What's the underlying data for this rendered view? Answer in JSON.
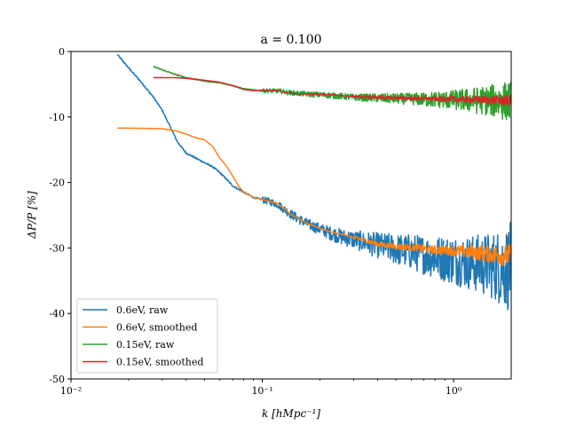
{
  "chart_data": {
    "type": "line",
    "title": "a = 0.100",
    "xlabel": "k [hMpc⁻¹]",
    "ylabel": "ΔP/P [%]",
    "xscale": "log",
    "xlim": [
      0.01,
      2.0
    ],
    "ylim": [
      -50,
      0
    ],
    "xticks": [
      {
        "value": 0.01,
        "label": "10⁻²"
      },
      {
        "value": 0.1,
        "label": "10⁻¹"
      },
      {
        "value": 1.0,
        "label": "10⁰"
      }
    ],
    "yticks": [
      0,
      -10,
      -20,
      -30,
      -40,
      -50
    ],
    "ytick_labels": [
      "0",
      "-10",
      "-20",
      "-30",
      "-40",
      "-50"
    ],
    "grid": false,
    "legend_position": "lower-left",
    "series": [
      {
        "name": "0.6eV, raw",
        "color": "#1f77b4",
        "noisy": true,
        "points": [
          [
            0.0175,
            -0.5
          ],
          [
            0.02,
            -2.5
          ],
          [
            0.023,
            -4.5
          ],
          [
            0.027,
            -7.0
          ],
          [
            0.03,
            -9.0
          ],
          [
            0.033,
            -11.5
          ],
          [
            0.036,
            -13.8
          ],
          [
            0.04,
            -15.5
          ],
          [
            0.045,
            -16.3
          ],
          [
            0.05,
            -17.0
          ],
          [
            0.055,
            -17.6
          ],
          [
            0.06,
            -18.5
          ],
          [
            0.065,
            -19.5
          ],
          [
            0.07,
            -20.5
          ],
          [
            0.08,
            -21.5
          ],
          [
            0.09,
            -22.3
          ],
          [
            0.1,
            -22.6
          ],
          [
            0.12,
            -23.3
          ],
          [
            0.14,
            -24.8
          ],
          [
            0.16,
            -25.8
          ],
          [
            0.18,
            -26.6
          ],
          [
            0.2,
            -27.1
          ],
          [
            0.23,
            -27.8
          ],
          [
            0.26,
            -28.3
          ],
          [
            0.3,
            -28.7
          ],
          [
            0.35,
            -29.2
          ],
          [
            0.4,
            -29.6
          ],
          [
            0.5,
            -30.2
          ],
          [
            0.6,
            -30.6
          ],
          [
            0.7,
            -31.0
          ],
          [
            0.8,
            -31.4
          ],
          [
            1.0,
            -31.8
          ],
          [
            1.2,
            -32.2
          ],
          [
            1.5,
            -32.6
          ],
          [
            2.0,
            -33.0
          ]
        ],
        "noise_envelope": [
          [
            0.1,
            0.5
          ],
          [
            0.2,
            0.9
          ],
          [
            0.3,
            1.4
          ],
          [
            0.5,
            2.4
          ],
          [
            0.8,
            3.3
          ],
          [
            1.2,
            4.2
          ],
          [
            1.6,
            5.2
          ],
          [
            2.0,
            7.0
          ]
        ]
      },
      {
        "name": "0.6eV, smoothed",
        "color": "#ff7f0e",
        "noisy": false,
        "points": [
          [
            0.0175,
            -11.7
          ],
          [
            0.02,
            -11.7
          ],
          [
            0.025,
            -11.75
          ],
          [
            0.03,
            -11.8
          ],
          [
            0.035,
            -12.1
          ],
          [
            0.04,
            -12.6
          ],
          [
            0.045,
            -13.2
          ],
          [
            0.05,
            -13.5
          ],
          [
            0.055,
            -14.5
          ],
          [
            0.06,
            -16.3
          ],
          [
            0.065,
            -17.5
          ],
          [
            0.07,
            -19.0
          ],
          [
            0.075,
            -20.5
          ],
          [
            0.08,
            -21.5
          ],
          [
            0.09,
            -22.3
          ],
          [
            0.1,
            -22.6
          ],
          [
            0.12,
            -23.2
          ],
          [
            0.14,
            -24.8
          ],
          [
            0.16,
            -25.8
          ],
          [
            0.18,
            -26.5
          ],
          [
            0.2,
            -27.0
          ],
          [
            0.23,
            -27.6
          ],
          [
            0.26,
            -27.9
          ],
          [
            0.3,
            -28.4
          ],
          [
            0.35,
            -28.9
          ],
          [
            0.4,
            -29.4
          ],
          [
            0.5,
            -29.8
          ],
          [
            0.6,
            -29.9
          ],
          [
            0.7,
            -30.1
          ],
          [
            0.8,
            -30.3
          ],
          [
            1.0,
            -30.4
          ],
          [
            1.2,
            -30.6
          ],
          [
            1.5,
            -30.9
          ],
          [
            2.0,
            -31.2
          ]
        ],
        "noise_envelope": [
          [
            0.3,
            0.3
          ],
          [
            0.6,
            0.5
          ],
          [
            1.0,
            0.8
          ],
          [
            1.5,
            1.3
          ],
          [
            2.0,
            1.8
          ]
        ]
      },
      {
        "name": "0.15eV, raw",
        "color": "#2ca02c",
        "noisy": true,
        "points": [
          [
            0.027,
            -2.3
          ],
          [
            0.03,
            -2.8
          ],
          [
            0.035,
            -3.5
          ],
          [
            0.04,
            -4.0
          ],
          [
            0.05,
            -4.5
          ],
          [
            0.06,
            -4.8
          ],
          [
            0.07,
            -5.2
          ],
          [
            0.08,
            -5.7
          ],
          [
            0.09,
            -5.9
          ],
          [
            0.1,
            -6.0
          ],
          [
            0.12,
            -6.0
          ],
          [
            0.14,
            -6.3
          ],
          [
            0.17,
            -6.5
          ],
          [
            0.2,
            -6.6
          ],
          [
            0.25,
            -6.8
          ],
          [
            0.3,
            -7.0
          ],
          [
            0.4,
            -7.1
          ],
          [
            0.5,
            -7.2
          ],
          [
            0.7,
            -7.3
          ],
          [
            1.0,
            -7.4
          ],
          [
            1.5,
            -7.5
          ],
          [
            2.0,
            -7.6
          ]
        ],
        "noise_envelope": [
          [
            0.1,
            0.3
          ],
          [
            0.3,
            0.5
          ],
          [
            0.6,
            0.9
          ],
          [
            1.0,
            1.5
          ],
          [
            1.5,
            2.3
          ],
          [
            2.0,
            3.2
          ]
        ]
      },
      {
        "name": "0.15eV, smoothed",
        "color": "#d62728",
        "noisy": false,
        "points": [
          [
            0.027,
            -4.0
          ],
          [
            0.035,
            -4.0
          ],
          [
            0.04,
            -4.1
          ],
          [
            0.05,
            -4.4
          ],
          [
            0.06,
            -4.7
          ],
          [
            0.07,
            -5.2
          ],
          [
            0.08,
            -5.8
          ],
          [
            0.09,
            -6.0
          ],
          [
            0.1,
            -5.9
          ],
          [
            0.12,
            -6.0
          ],
          [
            0.14,
            -6.4
          ],
          [
            0.17,
            -6.5
          ],
          [
            0.2,
            -6.5
          ],
          [
            0.25,
            -6.7
          ],
          [
            0.3,
            -6.9
          ],
          [
            0.4,
            -7.0
          ],
          [
            0.5,
            -7.1
          ],
          [
            0.7,
            -7.2
          ],
          [
            1.0,
            -7.3
          ],
          [
            1.5,
            -7.4
          ],
          [
            2.0,
            -7.5
          ]
        ],
        "noise_envelope": [
          [
            0.3,
            0.15
          ],
          [
            0.8,
            0.3
          ],
          [
            1.5,
            0.6
          ],
          [
            2.0,
            0.9
          ]
        ]
      }
    ]
  }
}
